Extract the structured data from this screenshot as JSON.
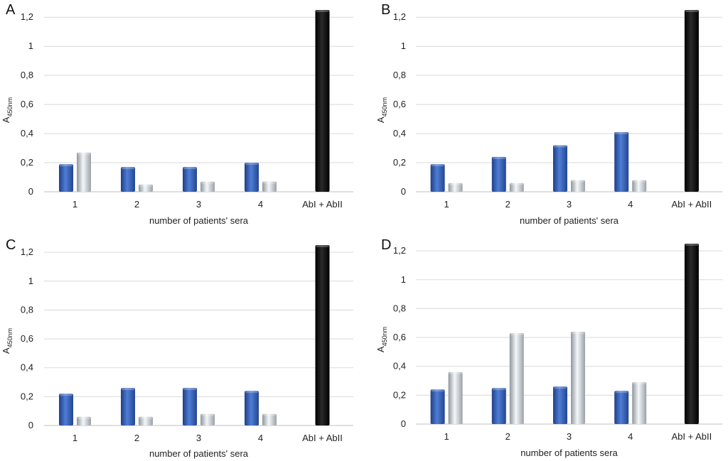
{
  "colors": {
    "blue": "#3a63b8",
    "silver": "#d8dde2",
    "black": "#111111",
    "grid": "#d9d9d9",
    "axis": "#bfbfbf"
  },
  "chart_data": [
    {
      "type": "bar",
      "panel": "A",
      "categories": [
        "1",
        "2",
        "3",
        "4",
        "AbI + AbII"
      ],
      "series": [
        {
          "name": "blue",
          "values": [
            0.19,
            0.17,
            0.17,
            0.2,
            null
          ]
        },
        {
          "name": "silver",
          "values": [
            0.27,
            0.05,
            0.07,
            0.07,
            null
          ]
        },
        {
          "name": "black",
          "values": [
            null,
            null,
            null,
            null,
            1.25
          ]
        }
      ],
      "xlabel": "number of patients' sera",
      "ylabel_main": "A",
      "ylabel_sub": "450nm",
      "yticks": [
        "0",
        "0,2",
        "0,4",
        "0,6",
        "0,8",
        "1",
        "1,2"
      ],
      "ylim": [
        0,
        1.25
      ]
    },
    {
      "type": "bar",
      "panel": "B",
      "categories": [
        "1",
        "2",
        "3",
        "4",
        "AbI + AbII"
      ],
      "series": [
        {
          "name": "blue",
          "values": [
            0.19,
            0.24,
            0.32,
            0.41,
            null
          ]
        },
        {
          "name": "silver",
          "values": [
            0.06,
            0.06,
            0.08,
            0.08,
            null
          ]
        },
        {
          "name": "black",
          "values": [
            null,
            null,
            null,
            null,
            1.25
          ]
        }
      ],
      "xlabel": "number of patients' sera",
      "ylabel_main": "A",
      "ylabel_sub": "450nm",
      "yticks": [
        "0",
        "0,2",
        "0,4",
        "0,6",
        "0,8",
        "1",
        "1,2"
      ],
      "ylim": [
        0,
        1.25
      ]
    },
    {
      "type": "bar",
      "panel": "C",
      "categories": [
        "1",
        "2",
        "3",
        "4",
        "AbI + AbII"
      ],
      "series": [
        {
          "name": "blue",
          "values": [
            0.22,
            0.26,
            0.26,
            0.24,
            null
          ]
        },
        {
          "name": "silver",
          "values": [
            0.06,
            0.06,
            0.08,
            0.08,
            null
          ]
        },
        {
          "name": "black",
          "values": [
            null,
            null,
            null,
            null,
            1.25
          ]
        }
      ],
      "xlabel": "number of patients' sera",
      "ylabel_main": "A",
      "ylabel_sub": "450nm",
      "yticks": [
        "0",
        "0,2",
        "0,4",
        "0,6",
        "0,8",
        "1",
        "1,2"
      ],
      "ylim": [
        0,
        1.25
      ]
    },
    {
      "type": "bar",
      "panel": "D",
      "categories": [
        "1",
        "2",
        "3",
        "4",
        "AbI + AbII"
      ],
      "series": [
        {
          "name": "blue",
          "values": [
            0.24,
            0.25,
            0.26,
            0.23,
            null
          ]
        },
        {
          "name": "silver",
          "values": [
            0.36,
            0.63,
            0.64,
            0.29,
            null
          ]
        },
        {
          "name": "black",
          "values": [
            null,
            null,
            null,
            null,
            1.25
          ]
        }
      ],
      "xlabel": "number of patients sera",
      "ylabel_main": "A",
      "ylabel_sub": "450nm",
      "yticks": [
        "0",
        "0,2",
        "0,4",
        "0,6",
        "0,8",
        "1",
        "1,2"
      ],
      "ylim": [
        0,
        1.25
      ]
    }
  ]
}
